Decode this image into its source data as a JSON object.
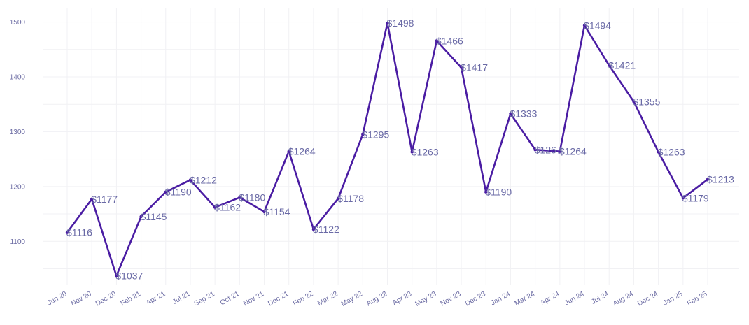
{
  "chart_data": {
    "type": "line",
    "title": "",
    "xlabel": "",
    "ylabel": "",
    "ylim": [
      1020,
      1525
    ],
    "yticks": [
      1100,
      1200,
      1300,
      1400,
      1500
    ],
    "grid": true,
    "legend": "none",
    "line_color": "#4a1ca3",
    "label_prefix": "$",
    "categories": [
      "Jun 20",
      "Nov 20",
      "Dec 20",
      "Feb 21",
      "Apr 21",
      "Jul 21",
      "Sep 21",
      "Oct 21",
      "Nov 21",
      "Dec 21",
      "Feb 22",
      "Mar 22",
      "May 22",
      "Aug 22",
      "Apr 23",
      "May 23",
      "Nov 23",
      "Dec 23",
      "Jan 24",
      "Mar 24",
      "Apr 24",
      "Jun 24",
      "Jul 24",
      "Aug 24",
      "Dec 24",
      "Jan 25",
      "Feb 25"
    ],
    "values": [
      1116,
      1177,
      1037,
      1145,
      1190,
      1212,
      1162,
      1180,
      1154,
      1264,
      1122,
      1178,
      1295,
      1498,
      1263,
      1466,
      1417,
      1190,
      1333,
      1267,
      1264,
      1494,
      1421,
      1355,
      1263,
      1179,
      1213
    ]
  }
}
